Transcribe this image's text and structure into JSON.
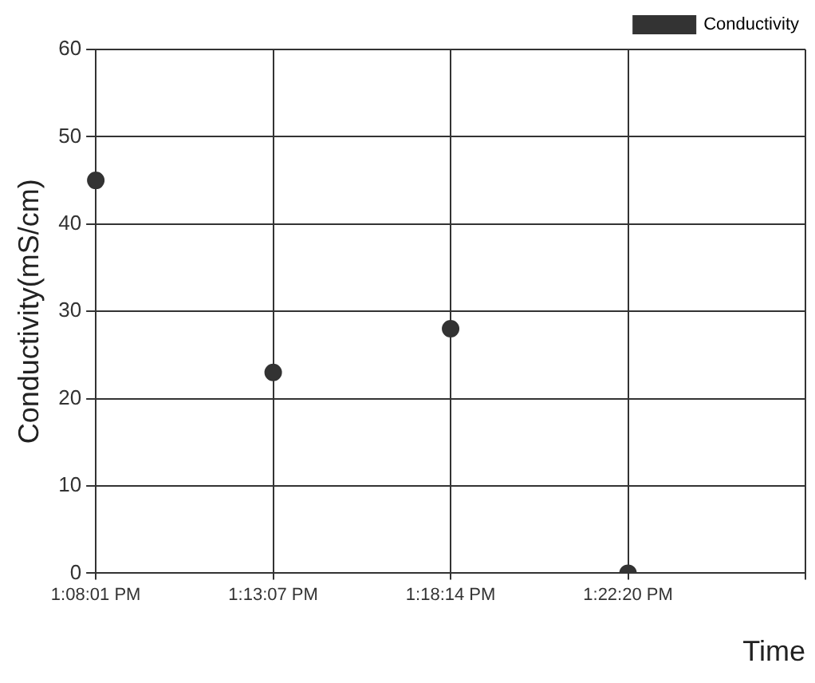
{
  "chart_data": {
    "type": "scatter",
    "xlabel": "Time",
    "ylabel": "Conductivity(mS/cm)",
    "categories": [
      "1:08:01 PM",
      "1:13:07 PM",
      "1:18:14 PM",
      "1:22:20 PM",
      null
    ],
    "series": [
      {
        "name": "Conductivity",
        "color": "#333333",
        "values": [
          45,
          23,
          28,
          0,
          null
        ]
      }
    ],
    "ylim": [
      0,
      60
    ],
    "yticks": [
      0,
      10,
      20,
      30,
      40,
      50,
      60
    ],
    "grid": true,
    "legend": "top right",
    "marker": "circle"
  }
}
